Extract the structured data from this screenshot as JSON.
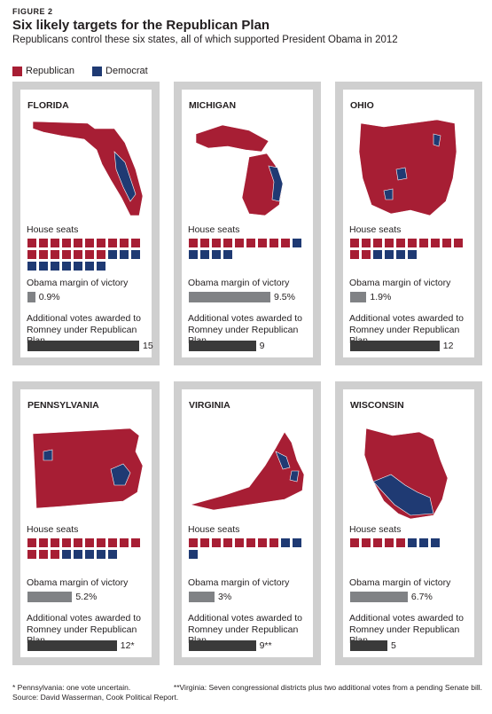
{
  "header": {
    "figure_label": "FIGURE 2",
    "title": "Six likely targets for the Republican Plan",
    "subtitle": "Republicans control these six states, all of which supported President Obama in 2012"
  },
  "legend": [
    {
      "label": "Republican",
      "color": "#a71e34"
    },
    {
      "label": "Democrat",
      "color": "#1f3a73"
    }
  ],
  "labels": {
    "house_seats": "House seats",
    "margin": "Obama margin of victory",
    "votes_line1": "Additional votes awarded to",
    "votes_line2": "Romney under Republican Plan"
  },
  "chart_data": {
    "type": "small-multiples",
    "title": "Six likely targets for the Republican Plan",
    "states": [
      {
        "name": "FLORIDA",
        "seats_republican": 17,
        "seats_democrat": 10,
        "obama_margin_pct": 0.9,
        "margin_label": "0.9%",
        "additional_votes": 15,
        "votes_label": "15"
      },
      {
        "name": "MICHIGAN",
        "seats_republican": 9,
        "seats_democrat": 5,
        "obama_margin_pct": 9.5,
        "margin_label": "9.5%",
        "additional_votes": 9,
        "votes_label": "9"
      },
      {
        "name": "OHIO",
        "seats_republican": 12,
        "seats_democrat": 4,
        "obama_margin_pct": 1.9,
        "margin_label": "1.9%",
        "additional_votes": 12,
        "votes_label": "12"
      },
      {
        "name": "PENNSYLVANIA",
        "seats_republican": 13,
        "seats_democrat": 5,
        "obama_margin_pct": 5.2,
        "margin_label": "5.2%",
        "additional_votes": 12,
        "votes_label": "12*"
      },
      {
        "name": "VIRGINIA",
        "seats_republican": 8,
        "seats_democrat": 3,
        "obama_margin_pct": 3.0,
        "margin_label": "3%",
        "additional_votes": 9,
        "votes_label": "9**"
      },
      {
        "name": "WISCONSIN",
        "seats_republican": 5,
        "seats_democrat": 3,
        "obama_margin_pct": 6.7,
        "margin_label": "6.7%",
        "additional_votes": 5,
        "votes_label": "5"
      }
    ]
  },
  "footer": {
    "note1": "* Pennsylvania: one vote uncertain.",
    "note2": "**Virginia: Seven congressional districts plus two additional votes from a pending Senate bill.",
    "source": "Source: David Wasserman, Cook Political Report."
  }
}
